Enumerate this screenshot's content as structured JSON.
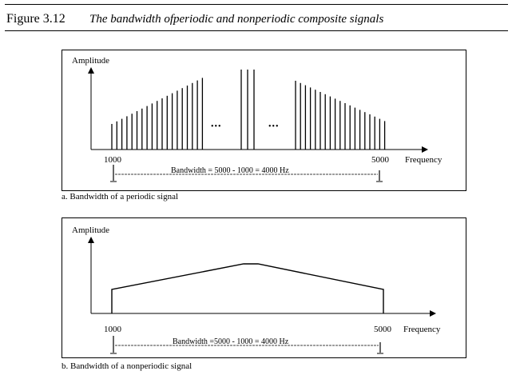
{
  "figure": {
    "label": "Figure 3.12",
    "caption": "The bandwidth ofperiodic and nonperiodic composite signals"
  },
  "panel_a": {
    "y_axis_label": "Amplitude",
    "x_axis_label": "Frequency",
    "low_freq_label": "1000",
    "high_freq_label": "5000",
    "bandwidth_text": "Bandwidth = 5000 -  1000 = 4000 Hz",
    "ellipsis": "•••",
    "subcaption": "a. Bandwidth of a periodic signal"
  },
  "panel_b": {
    "y_axis_label": "Amplitude",
    "x_axis_label": "Frequency",
    "low_freq_label": "1000",
    "high_freq_label": "5000",
    "bandwidth_text": "Bandwidth =5000 -  1000 = 4000 Hz",
    "subcaption": "b. Bandwidth of a nonperiodic signal"
  }
}
